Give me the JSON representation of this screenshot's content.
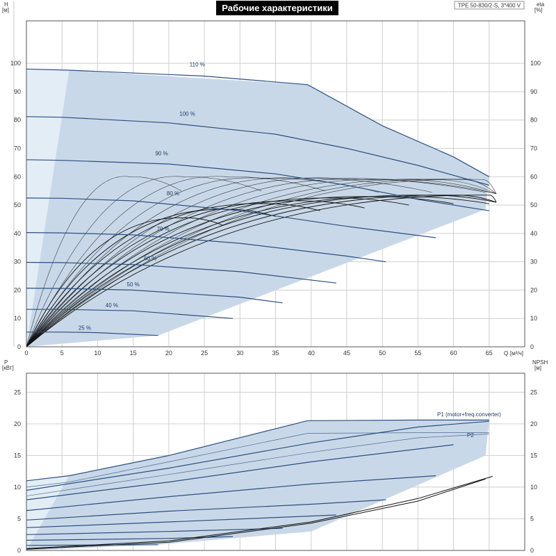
{
  "title": "Рабочие характеристики",
  "model": "TPE 50-830/2-S, 3*400 V",
  "colors": {
    "region": "#c9d8e8",
    "region_light": "#e3edf6",
    "curve": "#2a4f80",
    "eff": "#111111"
  },
  "chart_data": [
    {
      "type": "line",
      "name": "head",
      "ylabel": "H",
      "yunit": "[м]",
      "y2label": "eta",
      "y2unit": "[%]",
      "xlabel": "Q",
      "xunit": "[м³/ч]",
      "xlim": [
        0,
        70
      ],
      "ylim": [
        0,
        115
      ],
      "xticks": [
        0,
        5,
        10,
        15,
        20,
        25,
        30,
        35,
        40,
        45,
        50,
        55,
        60,
        65
      ],
      "yticks": [
        0,
        10,
        20,
        30,
        40,
        50,
        60,
        70,
        80,
        90,
        100
      ],
      "grid": true,
      "speed_curves": [
        {
          "name": "110 %",
          "x": [
            0,
            6,
            25,
            39.5,
            50,
            60,
            65
          ],
          "y": [
            98,
            97.6,
            95.5,
            92.5,
            78,
            67,
            60
          ]
        },
        {
          "name": "100 %",
          "x": [
            0,
            5,
            20,
            35,
            45,
            55,
            65
          ],
          "y": [
            81.2,
            81,
            79,
            75,
            70,
            64,
            57
          ]
        },
        {
          "name": "90 %",
          "x": [
            0,
            5,
            20,
            35,
            45,
            55,
            65
          ],
          "y": [
            66,
            65.8,
            64.5,
            61,
            57,
            52,
            48
          ]
        },
        {
          "name": "80 %",
          "x": [
            0,
            5,
            15,
            30,
            45,
            57.5
          ],
          "y": [
            52.5,
            52.4,
            51.5,
            48,
            42.5,
            38.5
          ]
        },
        {
          "name": "70 %",
          "x": [
            0,
            5,
            15,
            30,
            45,
            50.5
          ],
          "y": [
            40.3,
            40.2,
            39.5,
            36.5,
            32,
            30
          ]
        },
        {
          "name": "60 %",
          "x": [
            0,
            5,
            15,
            30,
            43.5
          ],
          "y": [
            29.8,
            29.7,
            29,
            26.5,
            22.5
          ]
        },
        {
          "name": "50 %",
          "x": [
            0,
            5,
            15,
            30,
            36
          ],
          "y": [
            20.7,
            20.6,
            20,
            17.5,
            15.5
          ]
        },
        {
          "name": "40 %",
          "x": [
            0,
            5,
            15,
            29
          ],
          "y": [
            13.2,
            13.2,
            12.7,
            10
          ]
        },
        {
          "name": "25 %",
          "x": [
            0,
            5,
            10,
            18.5
          ],
          "y": [
            5.2,
            5.2,
            5,
            4
          ]
        }
      ],
      "label_positions": [
        {
          "name": "110 %",
          "x": 24,
          "y": 99
        },
        {
          "name": "100 %",
          "x": 22.6,
          "y": 81.5
        },
        {
          "name": "90 %",
          "x": 19,
          "y": 67.5
        },
        {
          "name": "80 %",
          "x": 20.6,
          "y": 53.5
        },
        {
          "name": "70 %",
          "x": 19.2,
          "y": 41
        },
        {
          "name": "60 %",
          "x": 17.4,
          "y": 30.5
        },
        {
          "name": "50 %",
          "x": 15,
          "y": 21.3
        },
        {
          "name": "40 %",
          "x": 12,
          "y": 14
        },
        {
          "name": "25 %",
          "x": 8.2,
          "y": 6
        }
      ],
      "envelope": {
        "x": [
          0,
          6,
          39.5,
          50,
          60,
          65,
          64.5,
          18.5,
          0
        ],
        "y": [
          98,
          97.6,
          92.5,
          78,
          67,
          60,
          48.5,
          4,
          0
        ]
      },
      "light_envelope": {
        "x": [
          0,
          6,
          0
        ],
        "y": [
          98,
          97.6,
          0
        ]
      },
      "efficiency_peaks": {
        "x": [
          14.5,
          22,
          28,
          33,
          38,
          43,
          47,
          52,
          57,
          61,
          64
        ],
        "y": [
          60,
          60,
          60,
          59.5,
          59.5,
          59.5,
          59,
          59,
          59,
          59,
          59
        ]
      },
      "efficiency_peaks_2": {
        "x": [
          22,
          28,
          33,
          38,
          43,
          48,
          52,
          56,
          60,
          65
        ],
        "y": [
          45.5,
          48.5,
          50.5,
          51.5,
          52.5,
          53,
          53,
          53.5,
          53.5,
          53.5
        ]
      }
    },
    {
      "type": "line",
      "name": "power",
      "ylabel": "P",
      "yunit": "[кВт]",
      "y2label": "NPSH",
      "y2unit": "[м]",
      "xlim": [
        0,
        70
      ],
      "ylim": [
        0,
        28
      ],
      "yticks": [
        0,
        5,
        10,
        15,
        20,
        25
      ],
      "grid": true,
      "p1_label": "P1 (motor+freq.converter)",
      "p2_label": "P2",
      "p1_curves": [
        {
          "x": [
            0,
            6,
            20,
            39.5,
            55,
            65
          ],
          "y": [
            11,
            11.8,
            15,
            20.5,
            20.6,
            20.6
          ]
        },
        {
          "x": [
            0,
            20,
            40,
            55,
            65
          ],
          "y": [
            9.5,
            13,
            17,
            19.5,
            20.4
          ]
        },
        {
          "x": [
            0,
            20,
            40,
            60
          ],
          "y": [
            8,
            10.8,
            14,
            16.7
          ]
        },
        {
          "x": [
            0,
            20,
            40,
            57.5
          ],
          "y": [
            6.3,
            8.5,
            10.5,
            11.8
          ]
        },
        {
          "x": [
            0,
            20,
            40,
            50.5
          ],
          "y": [
            4.8,
            6.2,
            7.3,
            8
          ]
        },
        {
          "x": [
            0,
            20,
            43.5
          ],
          "y": [
            3.6,
            4.5,
            5.6
          ]
        },
        {
          "x": [
            0,
            20,
            36
          ],
          "y": [
            2.5,
            3,
            3.5
          ]
        },
        {
          "x": [
            0,
            20,
            29
          ],
          "y": [
            1.6,
            1.9,
            2.2
          ]
        },
        {
          "x": [
            0,
            18.5
          ],
          "y": [
            0.8,
            0.9
          ]
        }
      ],
      "p2_curves": [
        {
          "x": [
            0,
            6,
            20,
            39.5,
            55,
            65
          ],
          "y": [
            10,
            10.8,
            14,
            18.5,
            18.6,
            18.6
          ]
        },
        {
          "x": [
            0,
            20,
            40,
            55,
            65
          ],
          "y": [
            8.6,
            12,
            15.5,
            17.8,
            18.4
          ]
        }
      ],
      "envelope": {
        "x": [
          0,
          6,
          20,
          39.5,
          55,
          65,
          64.5,
          40,
          18.5,
          0
        ],
        "y": [
          11,
          11.8,
          15,
          20.5,
          20.6,
          20.6,
          15,
          3,
          0.9,
          0
        ]
      },
      "light_envelope": {
        "x": [
          0,
          6,
          0
        ],
        "y": [
          11,
          11.8,
          0
        ]
      },
      "npsh_curves": [
        {
          "x": [
            0,
            20,
            40,
            55,
            65.5
          ],
          "y": [
            0.3,
            1.5,
            4.5,
            8.2,
            11.7
          ]
        },
        {
          "x": [
            0,
            20,
            40,
            55,
            64.5
          ],
          "y": [
            0.2,
            1.3,
            4.3,
            7.8,
            11.3
          ]
        }
      ]
    }
  ]
}
